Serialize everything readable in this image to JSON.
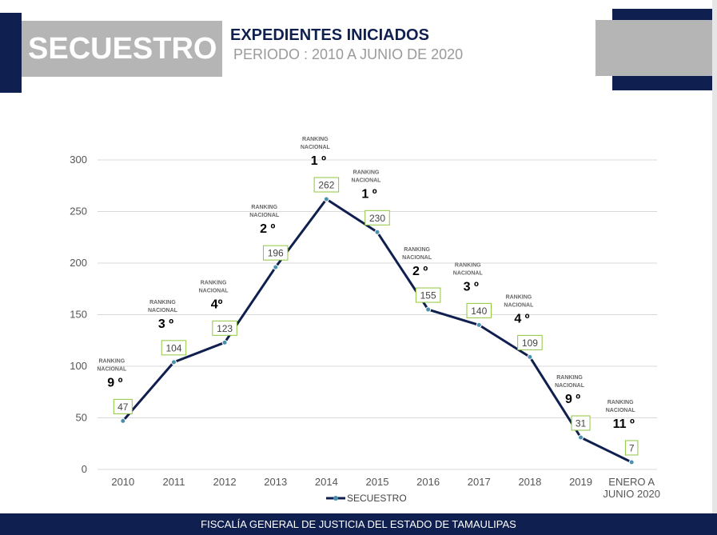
{
  "header": {
    "section_title": "SECUESTRO",
    "headline": "EXPEDIENTES INICIADOS",
    "subheadline": "PERIODO : 2010 A JUNIO DE 2020"
  },
  "footer": {
    "text": "FISCALÍA GENERAL DE JUSTICIA DEL ESTADO DE TAMAULIPAS"
  },
  "colors": {
    "navy": "#0f1f4f",
    "gray": "#b5b5b5",
    "label_border": "#8fc63f"
  },
  "chart_data": {
    "type": "line",
    "title": "",
    "xlabel": "",
    "ylabel": "",
    "ylim": [
      0,
      300
    ],
    "y_ticks": [
      "0",
      "50",
      "100",
      "150",
      "200",
      "250",
      "300"
    ],
    "grid": true,
    "legend_placement": "bottom",
    "categories": [
      [
        "2010"
      ],
      [
        "2011"
      ],
      [
        "2012"
      ],
      [
        "2013"
      ],
      [
        "2014"
      ],
      [
        "2015"
      ],
      [
        "2016"
      ],
      [
        "2017"
      ],
      [
        "2018"
      ],
      [
        "2019"
      ],
      [
        "ENERO A",
        "JUNIO 2020"
      ]
    ],
    "series": [
      {
        "name": "SECUESTRO",
        "values": [
          47,
          104,
          123,
          196,
          262,
          230,
          155,
          140,
          109,
          31,
          7
        ]
      }
    ],
    "ranking_label": [
      "RANKING",
      "NACIONAL"
    ],
    "rankings": [
      "9 º",
      "3 º",
      "4º",
      "2 º",
      "1 º",
      "1 º",
      "2 º",
      "3 º",
      "4 º",
      "9 º",
      "11 º"
    ]
  }
}
